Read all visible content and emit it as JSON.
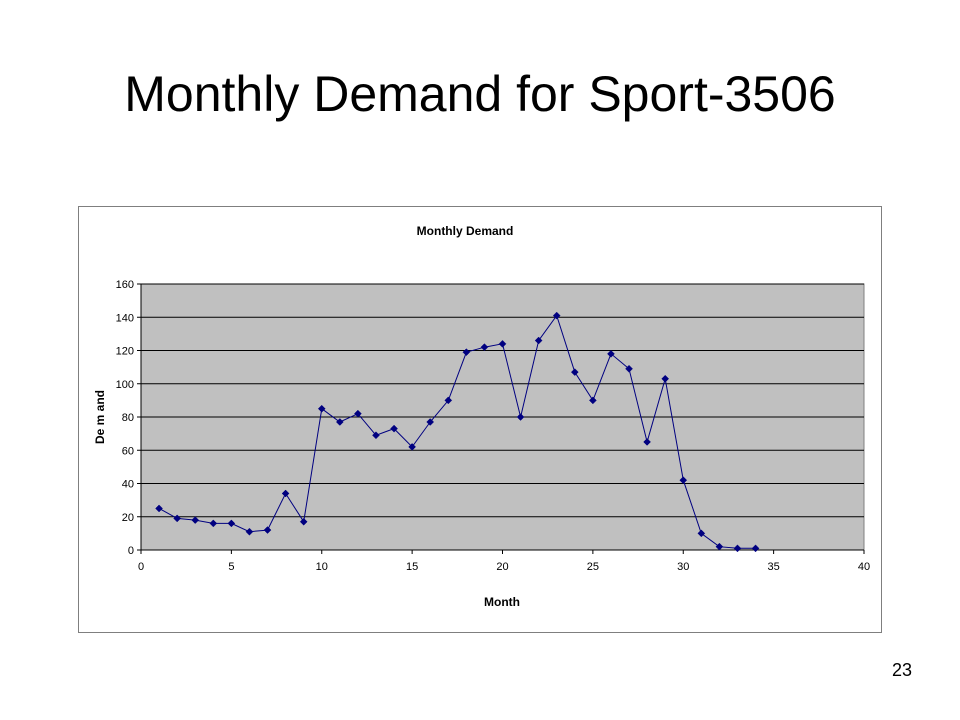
{
  "slide": {
    "title": "Monthly Demand for Sport-3506",
    "page_number": "23"
  },
  "chart_data": {
    "type": "line",
    "title": "Monthly Demand",
    "xlabel": "Month",
    "ylabel": "De m and",
    "xlim": [
      0,
      40
    ],
    "ylim": [
      0,
      160
    ],
    "xticks": [
      0,
      5,
      10,
      15,
      20,
      25,
      30,
      35,
      40
    ],
    "yticks": [
      0,
      20,
      40,
      60,
      80,
      100,
      120,
      140,
      160
    ],
    "grid": "horizontal",
    "plot_background": "#c0c0c0",
    "series_color": "#000080",
    "x": [
      1,
      2,
      3,
      4,
      5,
      6,
      7,
      8,
      9,
      10,
      11,
      12,
      13,
      14,
      15,
      16,
      17,
      18,
      19,
      20,
      21,
      22,
      23,
      24,
      25,
      26,
      27,
      28,
      29,
      30,
      31,
      32,
      33,
      34
    ],
    "series": [
      {
        "values": [
          25,
          19,
          18,
          16,
          16,
          11,
          12,
          34,
          17,
          85,
          77,
          82,
          69,
          73,
          62,
          77,
          90,
          119,
          122,
          124,
          80,
          126,
          141,
          107,
          90,
          118,
          109,
          65,
          103,
          42,
          10,
          2,
          1,
          1
        ]
      }
    ]
  }
}
